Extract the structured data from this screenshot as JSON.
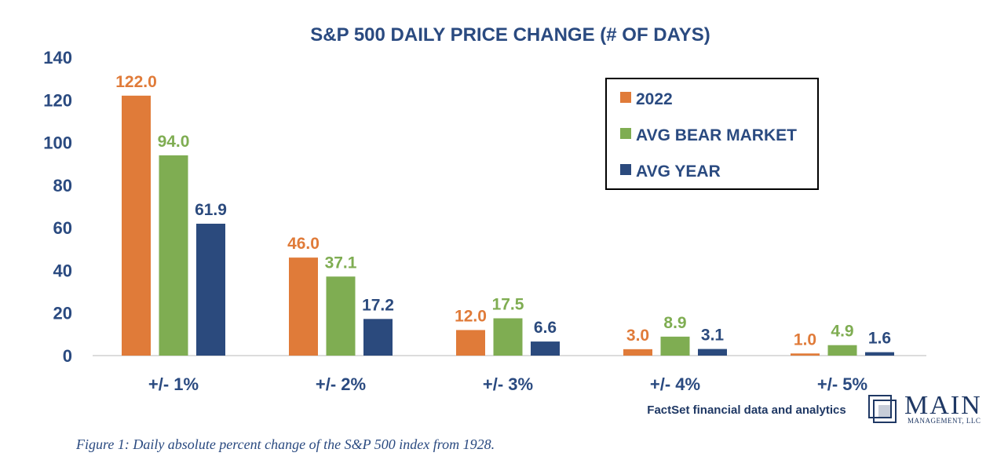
{
  "chart_data": {
    "type": "bar",
    "title": "S&P 500 DAILY PRICE CHANGE (# OF DAYS)",
    "categories": [
      "+/- 1%",
      "+/- 2%",
      "+/- 3%",
      "+/- 4%",
      "+/- 5%"
    ],
    "series": [
      {
        "name": "2022",
        "color": "#e07b39",
        "values": [
          122.0,
          46.0,
          12.0,
          3.0,
          1.0
        ],
        "labels": [
          "122.0",
          "46.0",
          "12.0",
          "3.0",
          "1.0"
        ]
      },
      {
        "name": "AVG BEAR MARKET",
        "color": "#7fad52",
        "values": [
          94.0,
          37.1,
          17.5,
          8.9,
          4.9
        ],
        "labels": [
          "94.0",
          "37.1",
          "17.5",
          "8.9",
          "4.9"
        ]
      },
      {
        "name": "AVG YEAR",
        "color": "#2b4a7d",
        "values": [
          61.9,
          17.2,
          6.6,
          3.1,
          1.6
        ],
        "labels": [
          "61.9",
          "17.2",
          "6.6",
          "3.1",
          "1.6"
        ]
      }
    ],
    "yticks": [
      "0",
      "20",
      "40",
      "60",
      "80",
      "100",
      "120",
      "140"
    ],
    "ylim": [
      0,
      140
    ],
    "xlabel": "",
    "ylabel": "",
    "grid": false,
    "legend_position": "top-right"
  },
  "source": "FactSet financial data and analytics",
  "logo": {
    "name": "MAIN",
    "subtitle": "MANAGEMENT, LLC"
  },
  "caption": "Figure 1: Daily absolute percent change of the S&P 500 index from 1928."
}
